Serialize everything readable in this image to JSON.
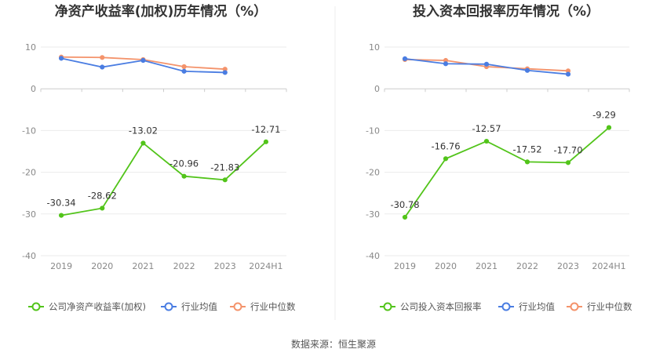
{
  "source": "数据来源：恒生聚源",
  "chart_data": [
    {
      "type": "line",
      "title": "净资产收益率(加权)历年情况（%）",
      "categories": [
        "2019",
        "2020",
        "2021",
        "2022",
        "2023",
        "2024H1"
      ],
      "ylim": [
        -40,
        10
      ],
      "yticks": [
        10,
        0,
        -10,
        -20,
        -30,
        -40
      ],
      "grid": true,
      "legend_position": "bottom",
      "series": [
        {
          "name": "公司净资产收益率(加权)",
          "color": "#52c41a",
          "values": [
            -30.34,
            -28.62,
            -13.02,
            -20.96,
            -21.83,
            -12.71
          ],
          "labels": [
            "-30.34",
            "-28.62",
            "-13.02",
            "-20.96",
            "-21.83",
            "-12.71"
          ]
        },
        {
          "name": "行业均值",
          "color": "#4a7de2",
          "values": [
            7.3,
            5.2,
            6.8,
            4.2,
            3.9,
            null
          ]
        },
        {
          "name": "行业中位数",
          "color": "#f4936b",
          "values": [
            7.6,
            7.5,
            7.0,
            5.3,
            4.7,
            null
          ]
        }
      ]
    },
    {
      "type": "line",
      "title": "投入资本回报率历年情况（%）",
      "categories": [
        "2019",
        "2020",
        "2021",
        "2022",
        "2023",
        "2024H1"
      ],
      "ylim": [
        -40,
        10
      ],
      "yticks": [
        10,
        0,
        -10,
        -20,
        -30,
        -40
      ],
      "grid": true,
      "legend_position": "bottom",
      "series": [
        {
          "name": "公司投入资本回报率",
          "color": "#52c41a",
          "values": [
            -30.78,
            -16.76,
            -12.57,
            -17.52,
            -17.7,
            -9.29
          ],
          "labels": [
            "-30.78",
            "-16.76",
            "-12.57",
            "-17.52",
            "-17.70",
            "-9.29"
          ]
        },
        {
          "name": "行业均值",
          "color": "#4a7de2",
          "values": [
            7.2,
            6.0,
            5.9,
            4.4,
            3.5,
            null
          ]
        },
        {
          "name": "行业中位数",
          "color": "#f4936b",
          "values": [
            7.0,
            6.8,
            5.3,
            4.8,
            4.3,
            null
          ]
        }
      ]
    }
  ]
}
